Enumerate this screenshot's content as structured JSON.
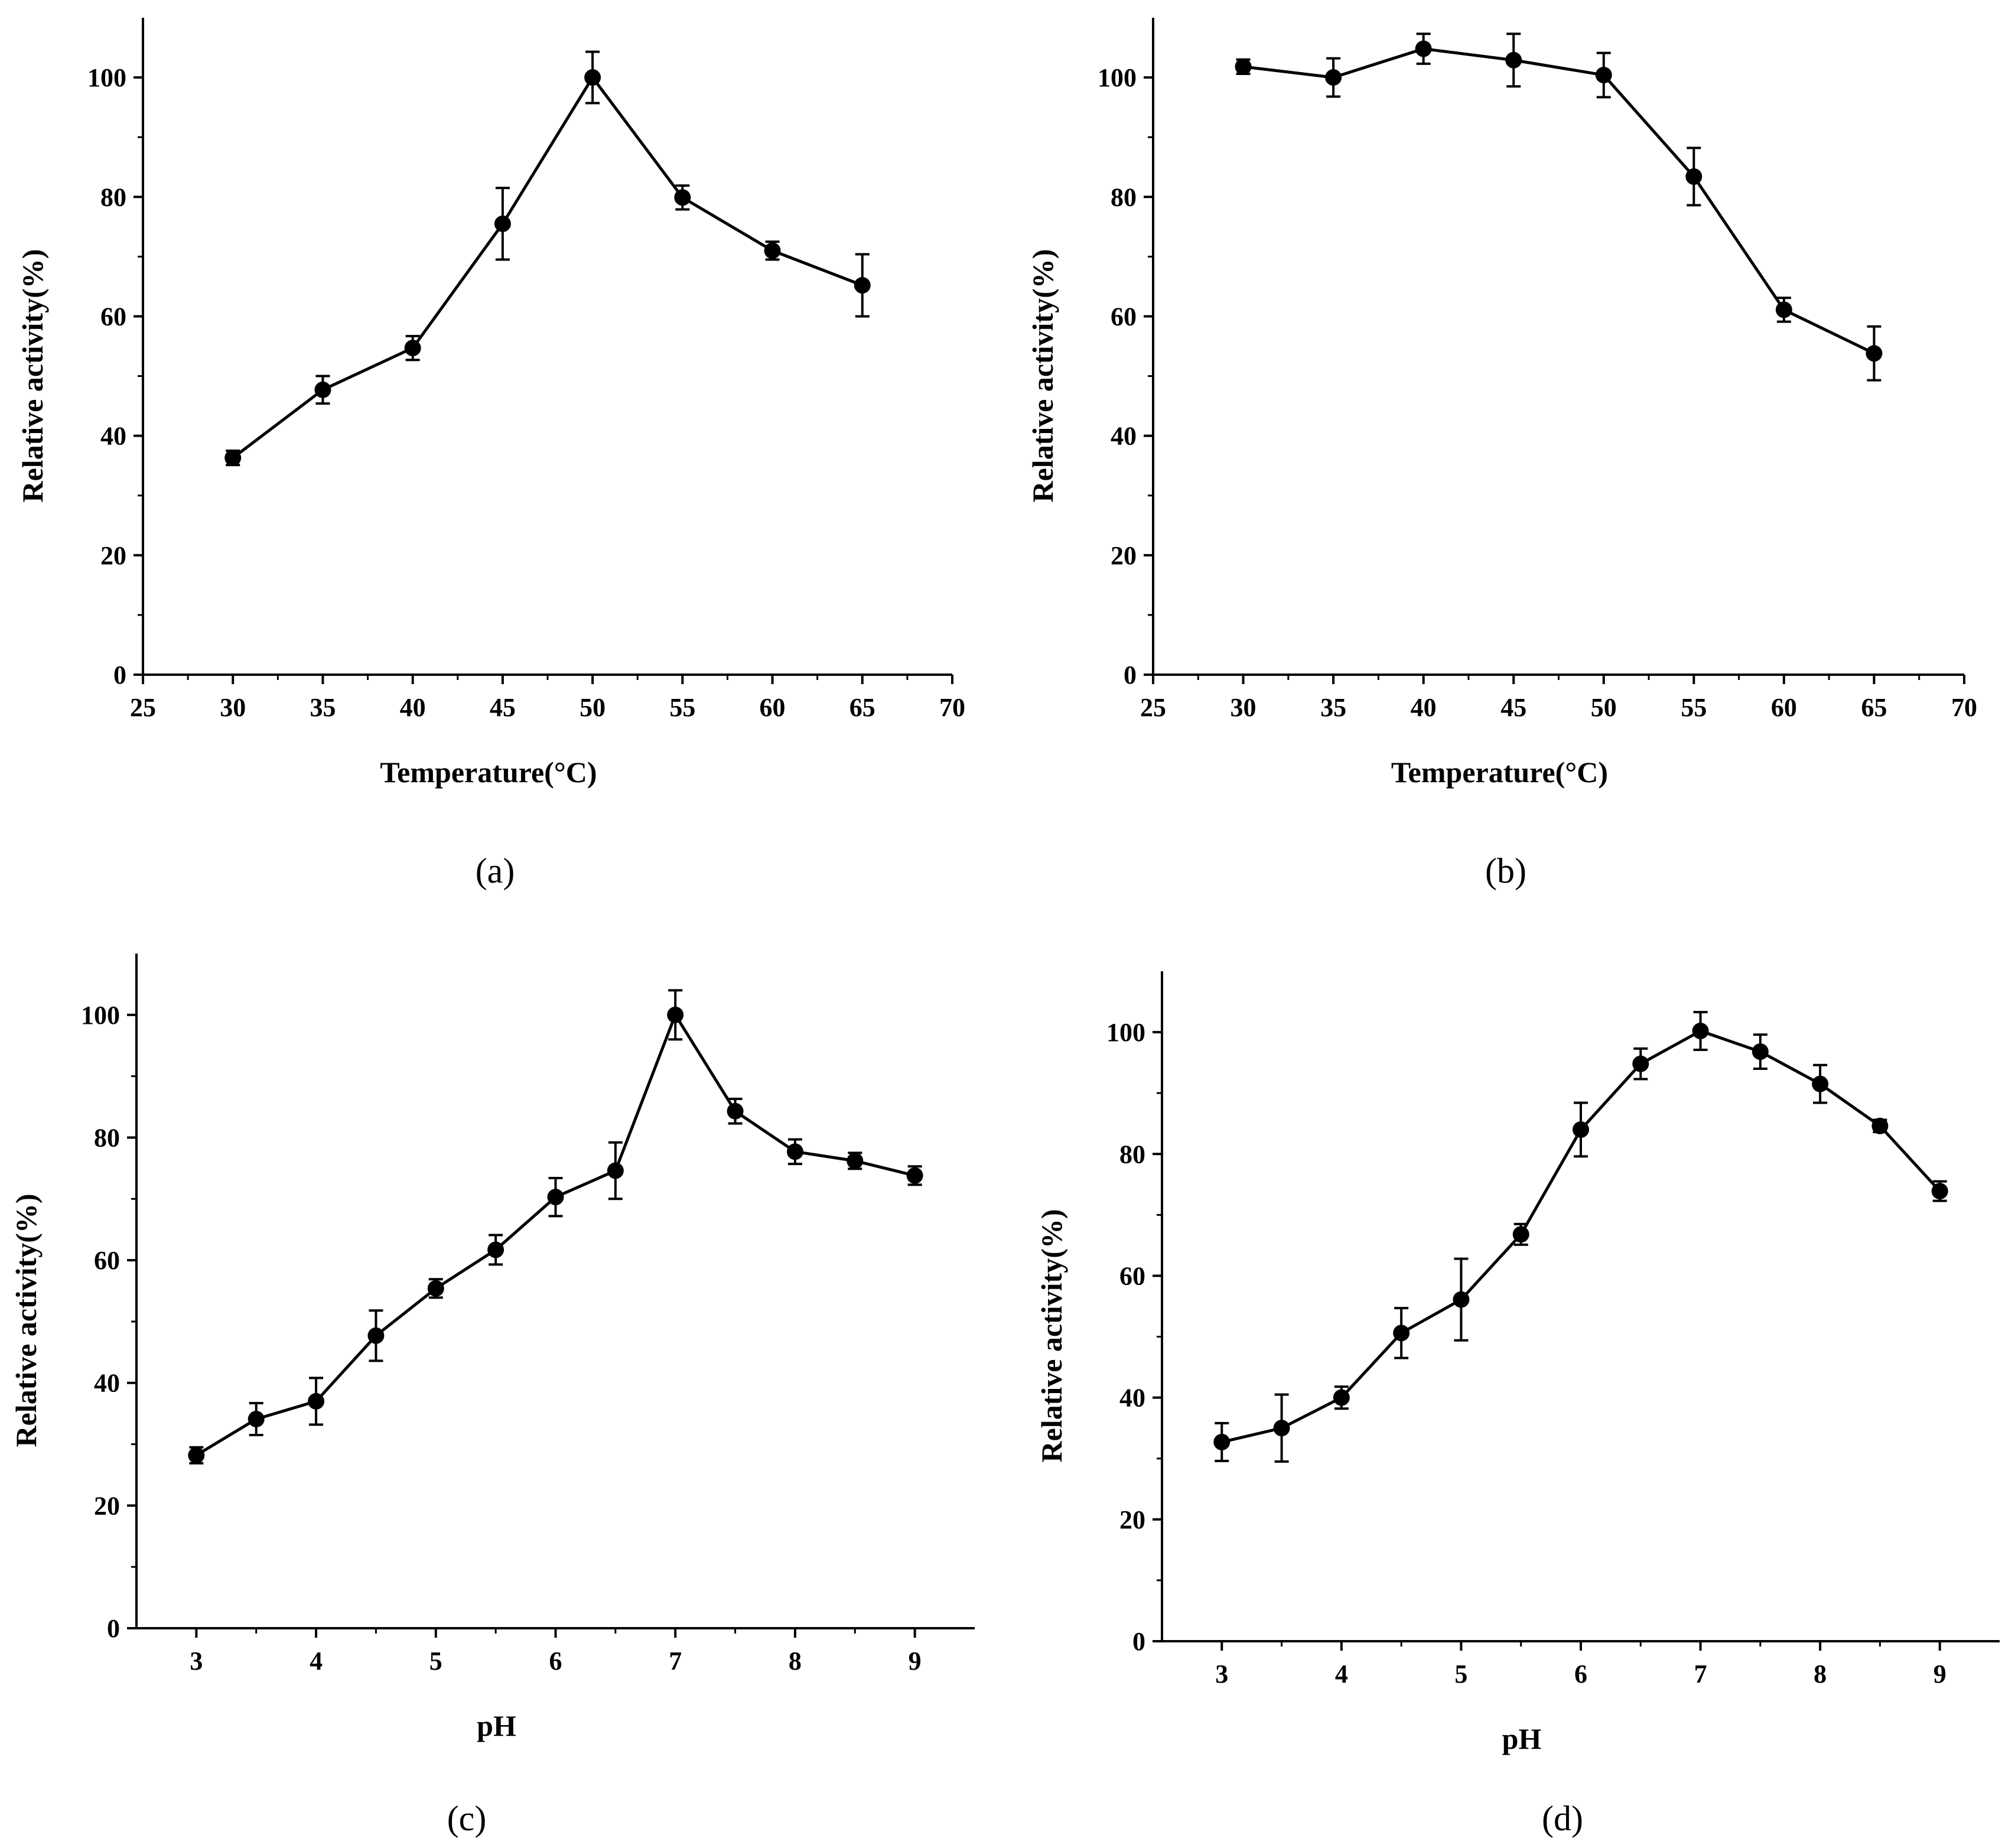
{
  "chart_data": [
    {
      "id": "a",
      "type": "line",
      "panel_label": "(a)",
      "xlabel": "Temperature(°C)",
      "ylabel": "Relative activity(%)",
      "xlim": [
        25,
        70
      ],
      "ylim": [
        0,
        110
      ],
      "xticks": [
        25,
        30,
        35,
        40,
        45,
        50,
        55,
        60,
        65,
        70
      ],
      "yticks": [
        0,
        20,
        40,
        60,
        80,
        100
      ],
      "x": [
        30,
        35,
        40,
        45,
        50,
        55,
        60,
        65
      ],
      "y": [
        36.3,
        47.7,
        54.7,
        75.5,
        100.0,
        79.9,
        71.0,
        65.2
      ],
      "err": [
        1.2,
        2.3,
        2.0,
        6.0,
        4.3,
        2.0,
        1.5,
        5.2
      ]
    },
    {
      "id": "b",
      "type": "line",
      "panel_label": "(b)",
      "xlabel": "Temperature(°C)",
      "ylabel": "Relative activity(%)",
      "xlim": [
        25,
        70
      ],
      "ylim": [
        0,
        110
      ],
      "xticks": [
        25,
        30,
        35,
        40,
        45,
        50,
        55,
        60,
        65,
        70
      ],
      "yticks": [
        0,
        20,
        40,
        60,
        80,
        100
      ],
      "x": [
        30,
        35,
        40,
        45,
        50,
        55,
        60,
        65
      ],
      "y": [
        101.8,
        100.0,
        104.8,
        102.9,
        100.4,
        83.4,
        61.1,
        53.8
      ],
      "err": [
        1.2,
        3.2,
        2.5,
        4.4,
        3.7,
        4.8,
        2.0,
        4.5
      ]
    },
    {
      "id": "c",
      "type": "line",
      "panel_label": "(c)",
      "xlabel": "pH",
      "ylabel": "Relative activity(%)",
      "xlim": [
        2.5,
        9.5
      ],
      "ylim": [
        0,
        110
      ],
      "xticks": [
        3,
        4,
        5,
        6,
        7,
        8,
        9
      ],
      "yticks": [
        0,
        20,
        40,
        60,
        80,
        100
      ],
      "x": [
        3,
        3.5,
        4,
        4.5,
        5,
        5.5,
        6,
        6.5,
        7,
        7.5,
        8,
        8.5,
        9
      ],
      "y": [
        28.2,
        34.1,
        37.0,
        47.7,
        55.4,
        61.7,
        70.3,
        74.6,
        100.0,
        84.3,
        77.7,
        76.2,
        73.8
      ],
      "err": [
        1.3,
        2.6,
        3.8,
        4.1,
        1.5,
        2.4,
        3.1,
        4.6,
        4.0,
        2.0,
        2.0,
        1.3,
        1.5
      ]
    },
    {
      "id": "d",
      "type": "line",
      "panel_label": "(d)",
      "xlabel": "pH",
      "ylabel": "Relative activity(%)",
      "xlim": [
        2.5,
        9.5
      ],
      "ylim": [
        0,
        110
      ],
      "xticks": [
        3,
        4,
        5,
        6,
        7,
        8,
        9
      ],
      "yticks": [
        0,
        20,
        40,
        60,
        80,
        100
      ],
      "x": [
        3,
        3.5,
        4,
        4.5,
        5,
        5.5,
        6,
        6.5,
        7,
        7.5,
        8,
        8.5,
        9
      ],
      "y": [
        32.7,
        35.0,
        40.0,
        50.6,
        56.1,
        66.8,
        84.0,
        94.8,
        100.2,
        96.8,
        91.5,
        84.6,
        73.9
      ],
      "err": [
        3.1,
        5.5,
        1.8,
        4.1,
        6.7,
        1.7,
        4.4,
        2.5,
        3.1,
        2.8,
        3.1,
        1.0,
        1.6
      ]
    }
  ]
}
